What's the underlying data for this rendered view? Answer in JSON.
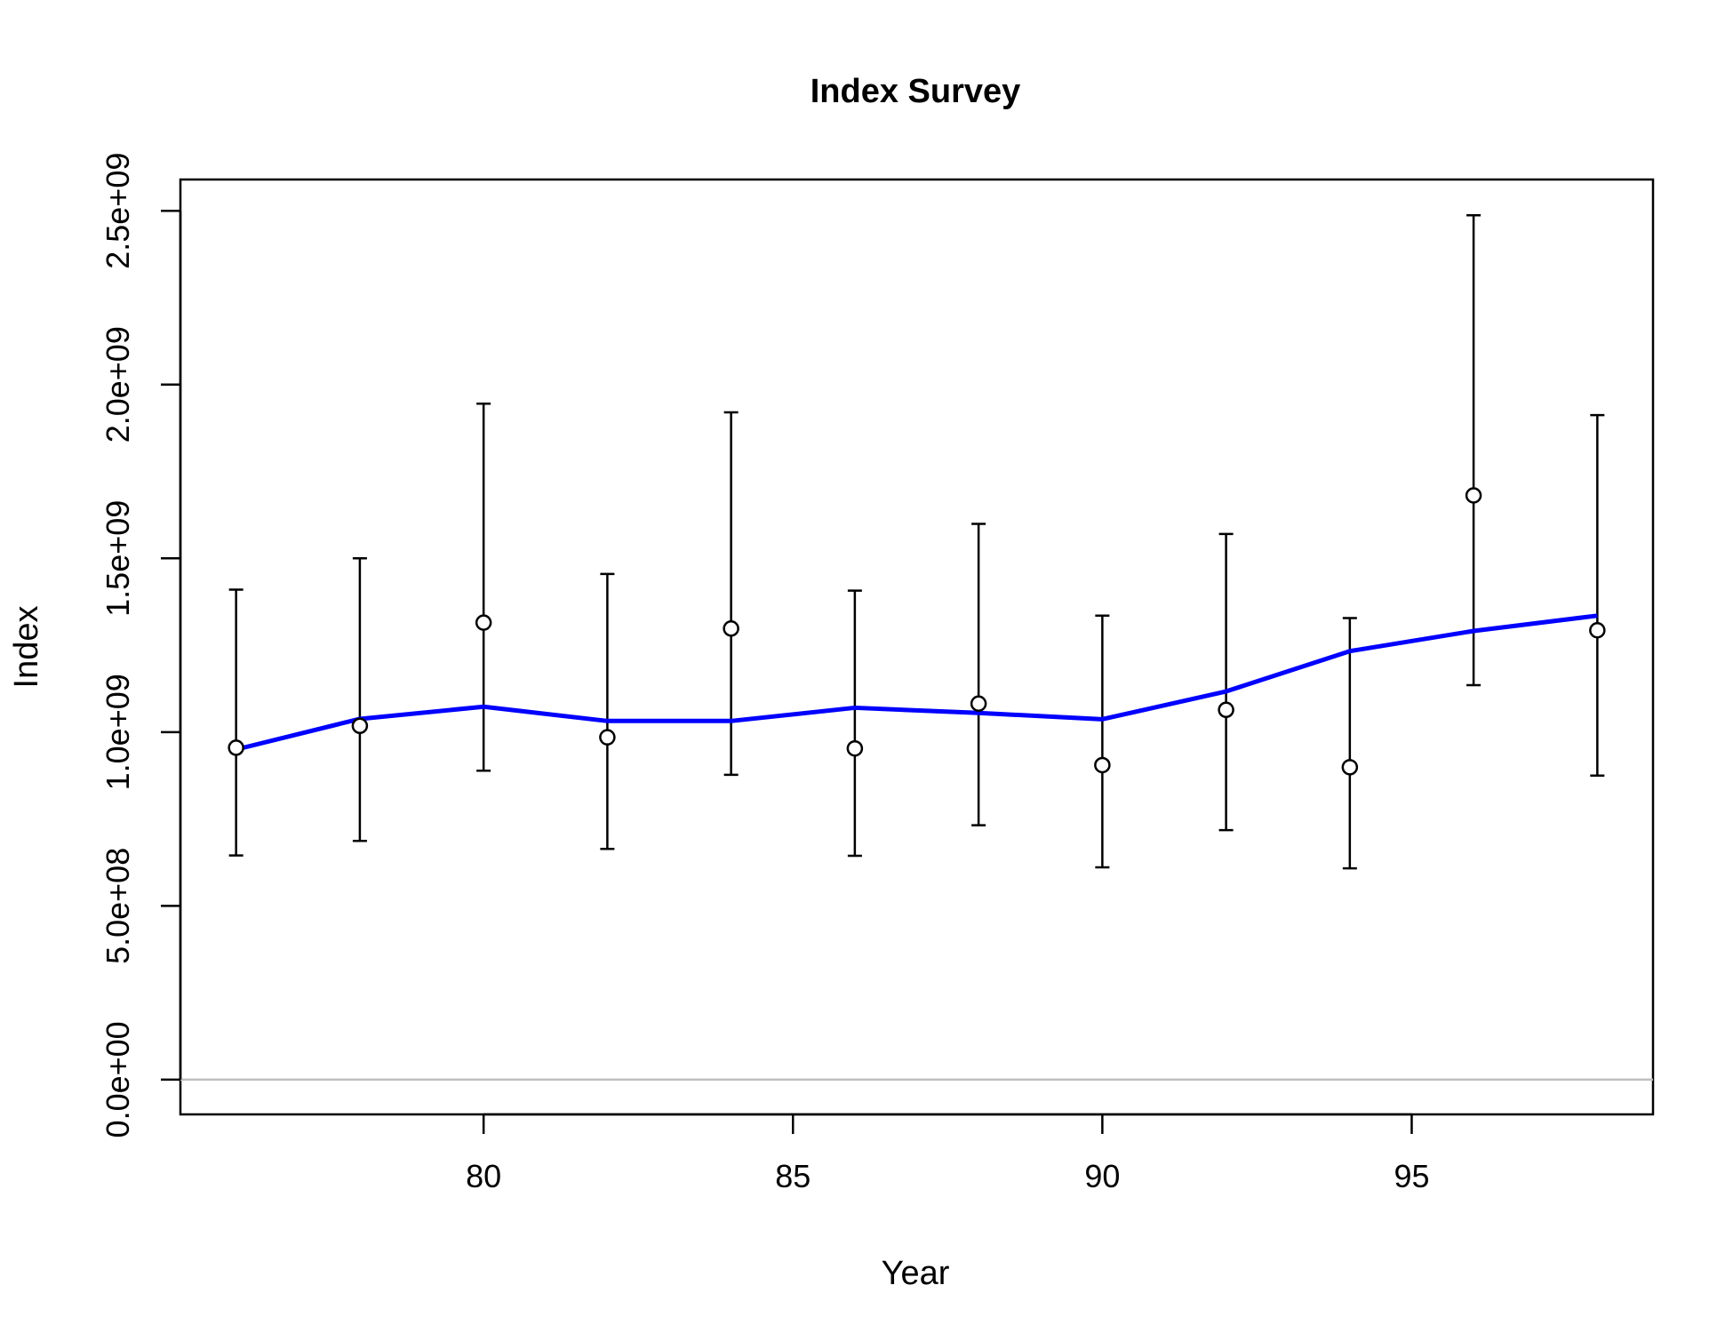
{
  "chart_data": {
    "type": "scatter",
    "title": "Index Survey",
    "xlabel": "Year",
    "ylabel": "Index",
    "xlim": [
      75.1,
      98.9
    ],
    "ylim": [
      -100000000,
      2590000000
    ],
    "xticks": [
      80,
      85,
      90,
      95
    ],
    "xtick_labels": [
      "80",
      "85",
      "90",
      "95"
    ],
    "yticks": [
      0,
      500000000,
      1000000000,
      1500000000,
      2000000000,
      2500000000
    ],
    "ytick_labels": [
      "0.0e+00",
      "5.0e+08",
      "1.0e+09",
      "1.5e+09",
      "2.0e+09",
      "2.5e+09"
    ],
    "reference_line": 0,
    "grid": false,
    "colors": {
      "fit": "#0000ff",
      "points": "#000000",
      "reference": "#bebebe"
    },
    "observed": {
      "x": [
        76,
        78,
        80,
        82,
        84,
        86,
        88,
        90,
        92,
        94,
        96,
        98
      ],
      "y": [
        955000000,
        1018000000,
        1315000000,
        985000000,
        1298000000,
        953000000,
        1082000000,
        905000000,
        1064000000,
        899000000,
        1681000000,
        1293000000
      ],
      "lower": [
        645000000,
        687000000,
        889000000,
        664000000,
        877000000,
        644000000,
        732000000,
        611000000,
        718000000,
        608000000,
        1135000000,
        875000000
      ],
      "upper": [
        1410000000,
        1500000000,
        1945000000,
        1455000000,
        1920000000,
        1407000000,
        1599000000,
        1335000000,
        1570000000,
        1328000000,
        2487000000,
        1912000000
      ]
    },
    "fitted": {
      "x": [
        76,
        78,
        80,
        82,
        84,
        86,
        88,
        90,
        92,
        94,
        96,
        98
      ],
      "y": [
        950000000,
        1038000000,
        1073000000,
        1032000000,
        1032000000,
        1070000000,
        1055000000,
        1037000000,
        1117000000,
        1233000000,
        1291000000,
        1335000000
      ]
    }
  }
}
